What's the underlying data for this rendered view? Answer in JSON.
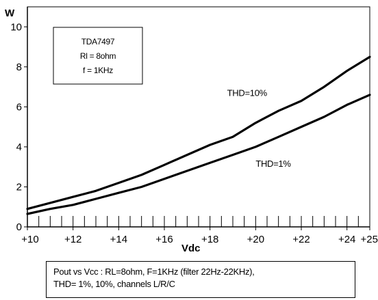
{
  "chart_data": {
    "type": "line",
    "x_tick_labels": [
      "+10",
      "+12",
      "+14",
      "+16",
      "+18",
      "+20",
      "+22",
      "+24",
      "+25"
    ],
    "x_ticks": [
      10,
      12,
      14,
      16,
      18,
      20,
      22,
      24,
      25
    ],
    "y_tick_labels": [
      "0",
      "2",
      "4",
      "6",
      "8",
      "10"
    ],
    "y_ticks": [
      0,
      2,
      4,
      6,
      8,
      10
    ],
    "xlim": [
      10,
      25
    ],
    "ylim": [
      0,
      11
    ],
    "xlabel": "Vdc",
    "ylabel": "W",
    "grid": false,
    "info_box": [
      "TDA7497",
      "Rl = 8ohm",
      "f = 1KHz"
    ],
    "series": [
      {
        "name": "THD=10%",
        "x": [
          10,
          11,
          12,
          13,
          14,
          15,
          16,
          17,
          18,
          19,
          20,
          21,
          22,
          23,
          24,
          25
        ],
        "y": [
          0.9,
          1.2,
          1.5,
          1.8,
          2.2,
          2.6,
          3.1,
          3.6,
          4.1,
          4.5,
          5.2,
          5.8,
          6.3,
          7.0,
          7.8,
          8.5
        ]
      },
      {
        "name": "THD=1%",
        "x": [
          10,
          11,
          12,
          13,
          14,
          15,
          16,
          17,
          18,
          19,
          20,
          21,
          22,
          23,
          24,
          25
        ],
        "y": [
          0.65,
          0.9,
          1.1,
          1.4,
          1.7,
          2.0,
          2.4,
          2.8,
          3.2,
          3.6,
          4.0,
          4.5,
          5.0,
          5.5,
          6.1,
          6.6
        ]
      }
    ]
  },
  "caption": {
    "line1": "Pout vs Vcc : RL=8ohm, F=1KHz (filter 22Hz-22KHz),",
    "line2": "THD= 1%, 10%,  channels L/R/C"
  }
}
